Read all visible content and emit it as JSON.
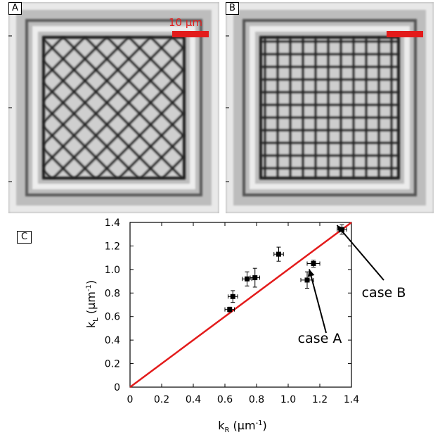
{
  "panels": [
    {
      "letter": "A",
      "scale_bar_text": "10 µm"
    },
    {
      "letter": "B"
    }
  ],
  "colors": {
    "scale_bar": "#e31b1b",
    "fit_line": "#e31b1b",
    "points": "#000000"
  },
  "chart_data": {
    "panel_label": "C",
    "type": "scatter",
    "xlabel": "k",
    "xlabel_sub": "R",
    "xlabel_unit": "(µm",
    "xlabel_exp": "-1",
    "ylabel": "k",
    "ylabel_sub": "L",
    "ylabel_unit": "(µm",
    "ylabel_exp": "-1",
    "xlim": [
      0,
      1.4
    ],
    "ylim": [
      0,
      1.4
    ],
    "x_ticks": [
      "0",
      "0.2",
      "0.4",
      "0.6",
      "0.8",
      "1.0",
      "1.2",
      "1.4"
    ],
    "y_ticks": [
      "0",
      "0.2",
      "0.4",
      "0.6",
      "0.8",
      "1.0",
      "1.2",
      "1.4"
    ],
    "grid": false,
    "points": [
      {
        "x": 0.63,
        "y": 0.66,
        "xerr": 0.03,
        "yerr": 0.02
      },
      {
        "x": 0.65,
        "y": 0.77,
        "xerr": 0.03,
        "yerr": 0.05
      },
      {
        "x": 0.74,
        "y": 0.92,
        "xerr": 0.03,
        "yerr": 0.06
      },
      {
        "x": 0.79,
        "y": 0.93,
        "xerr": 0.03,
        "yerr": 0.08
      },
      {
        "x": 0.94,
        "y": 1.13,
        "xerr": 0.03,
        "yerr": 0.06
      },
      {
        "x": 1.12,
        "y": 0.91,
        "xerr": 0.04,
        "yerr": 0.07
      },
      {
        "x": 1.16,
        "y": 1.05,
        "xerr": 0.04,
        "yerr": 0.03
      },
      {
        "x": 1.34,
        "y": 1.34,
        "xerr": 0.03,
        "yerr": 0.04
      }
    ],
    "reference_line": {
      "x": [
        0,
        1.4
      ],
      "y": [
        0,
        1.4
      ]
    },
    "annotations": [
      {
        "text": "case A",
        "x": 1.16,
        "y": 1.05
      },
      {
        "text": "case B",
        "x": 1.34,
        "y": 1.34
      }
    ]
  }
}
